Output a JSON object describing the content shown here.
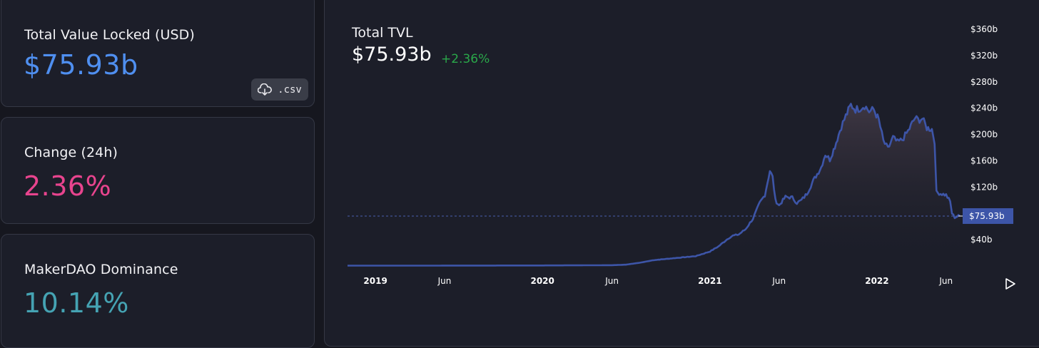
{
  "cards": {
    "tvl": {
      "label": "Total Value Locked (USD)",
      "value": "$75.93b"
    },
    "change": {
      "label": "Change (24h)",
      "value": "2.36%"
    },
    "dominance": {
      "label": "MakerDAO Dominance",
      "value": "10.14%"
    },
    "csv_button": {
      "label": ".csv",
      "icon": "cloud-download-icon"
    }
  },
  "chart": {
    "title": "Total TVL",
    "value": "$75.93b",
    "change": "+2.36%",
    "current_marker_label": "$75.93b",
    "play_icon": "play-icon"
  },
  "colors": {
    "background": "#16171f",
    "card": "#1c1e29",
    "tvl_value": "#4f8ff0",
    "change_value": "#e8448e",
    "dominance_value": "#45a3b3",
    "positive_change": "#2aa84a",
    "series_line": "#3d55a8",
    "marker": "#3d55a8"
  },
  "chart_data": {
    "type": "area",
    "title": "Total TVL",
    "xlabel": "",
    "ylabel": "",
    "y_unit": "billion USD",
    "ylim": [
      0,
      360
    ],
    "y_ticks": [
      40,
      120,
      160,
      200,
      240,
      280,
      320,
      360
    ],
    "y_tick_labels": [
      "$40b",
      "$120b",
      "$160b",
      "$200b",
      "$240b",
      "$280b",
      "$320b",
      "$360b"
    ],
    "x_tick_labels": [
      {
        "label": "2019",
        "date": "2019-01-01",
        "bold": true
      },
      {
        "label": "Jun",
        "date": "2019-06-01",
        "bold": false
      },
      {
        "label": "2020",
        "date": "2020-01-01",
        "bold": true
      },
      {
        "label": "Jun",
        "date": "2020-06-01",
        "bold": false
      },
      {
        "label": "2021",
        "date": "2021-01-01",
        "bold": true
      },
      {
        "label": "Jun",
        "date": "2021-06-01",
        "bold": false
      },
      {
        "label": "2022",
        "date": "2022-01-01",
        "bold": true
      },
      {
        "label": "Jun",
        "date": "2022-06-01",
        "bold": false
      }
    ],
    "x_start": "2018-11-01",
    "x_end": "2022-07-01",
    "current_value": 75.93,
    "grid": false,
    "series": [
      {
        "points": [
          [
            "2018-11-01",
            0.5
          ],
          [
            "2019-06-01",
            0.6
          ],
          [
            "2020-01-01",
            0.8
          ],
          [
            "2020-06-01",
            1.2
          ],
          [
            "2020-07-01",
            2
          ],
          [
            "2020-08-01",
            5
          ],
          [
            "2020-09-01",
            9
          ],
          [
            "2020-10-01",
            11
          ],
          [
            "2020-11-01",
            13
          ],
          [
            "2020-12-01",
            15
          ],
          [
            "2021-01-01",
            22
          ],
          [
            "2021-01-20",
            30
          ],
          [
            "2021-02-10",
            42
          ],
          [
            "2021-02-20",
            46
          ],
          [
            "2021-03-05",
            48
          ],
          [
            "2021-03-20",
            56
          ],
          [
            "2021-04-05",
            72
          ],
          [
            "2021-04-20",
            96
          ],
          [
            "2021-05-01",
            108
          ],
          [
            "2021-05-12",
            145
          ],
          [
            "2021-05-18",
            135
          ],
          [
            "2021-05-24",
            100
          ],
          [
            "2021-06-01",
            92
          ],
          [
            "2021-06-15",
            105
          ],
          [
            "2021-06-30",
            104
          ],
          [
            "2021-07-10",
            96
          ],
          [
            "2021-07-20",
            100
          ],
          [
            "2021-08-01",
            110
          ],
          [
            "2021-08-15",
            130
          ],
          [
            "2021-09-01",
            150
          ],
          [
            "2021-09-10",
            170
          ],
          [
            "2021-09-20",
            162
          ],
          [
            "2021-10-01",
            182
          ],
          [
            "2021-10-15",
            212
          ],
          [
            "2021-10-25",
            228
          ],
          [
            "2021-11-05",
            245
          ],
          [
            "2021-11-15",
            238
          ],
          [
            "2021-11-25",
            240
          ],
          [
            "2021-12-05",
            244
          ],
          [
            "2021-12-15",
            235
          ],
          [
            "2021-12-25",
            238
          ],
          [
            "2022-01-05",
            222
          ],
          [
            "2022-01-15",
            190
          ],
          [
            "2022-01-25",
            178
          ],
          [
            "2022-02-05",
            195
          ],
          [
            "2022-02-15",
            188
          ],
          [
            "2022-02-25",
            192
          ],
          [
            "2022-03-10",
            205
          ],
          [
            "2022-03-25",
            225
          ],
          [
            "2022-04-01",
            222
          ],
          [
            "2022-04-10",
            224
          ],
          [
            "2022-04-20",
            210
          ],
          [
            "2022-05-01",
            208
          ],
          [
            "2022-05-07",
            190
          ],
          [
            "2022-05-11",
            112
          ],
          [
            "2022-05-20",
            110
          ],
          [
            "2022-06-01",
            108
          ],
          [
            "2022-06-10",
            98
          ],
          [
            "2022-06-14",
            80
          ],
          [
            "2022-06-20",
            74
          ],
          [
            "2022-06-28",
            76
          ],
          [
            "2022-07-01",
            75.93
          ]
        ]
      }
    ]
  }
}
